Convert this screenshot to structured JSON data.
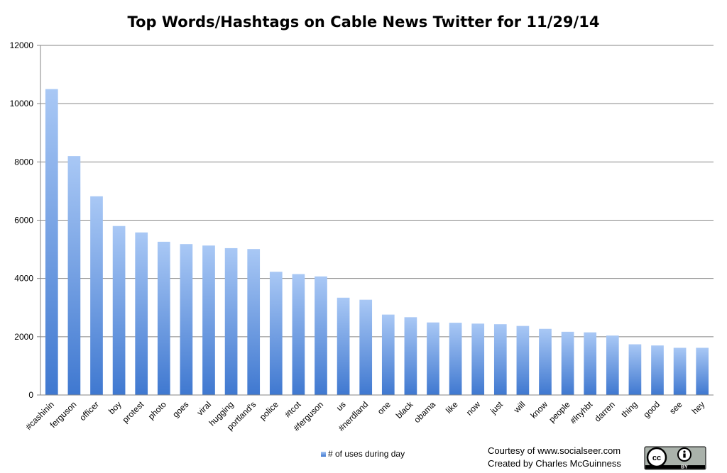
{
  "chart_data": {
    "type": "bar",
    "title": "Top Words/Hashtags on Cable News Twitter for 11/29/14",
    "categories": [
      "#cashinin",
      "ferguson",
      "officer",
      "boy",
      "protest",
      "photo",
      "goes",
      "viral",
      "hugging",
      "portland's",
      "police",
      "#tcot",
      "#ferguson",
      "us",
      "#nerdland",
      "one",
      "black",
      "obama",
      "like",
      "now",
      "just",
      "will",
      "know",
      "people",
      "#lnyhbt",
      "darren",
      "thing",
      "good",
      "see",
      "hey"
    ],
    "series": [
      {
        "name": "# of uses during day",
        "values": [
          10500,
          8200,
          6820,
          5800,
          5580,
          5260,
          5180,
          5130,
          5040,
          5010,
          4230,
          4150,
          4070,
          3340,
          3270,
          2760,
          2670,
          2490,
          2480,
          2450,
          2430,
          2370,
          2270,
          2170,
          2150,
          2040,
          1740,
          1700,
          1620,
          1620
        ]
      }
    ],
    "ylim": [
      0,
      12000
    ],
    "yticks": [
      0,
      2000,
      4000,
      6000,
      8000,
      10000,
      12000
    ],
    "grid": true,
    "legend": "bottom",
    "colors": {
      "bar_top": "#a9c8f5",
      "bar_bottom": "#3f78d0",
      "grid": "#868686",
      "axis": "#868686"
    }
  },
  "footer": {
    "credit_line1": "Courtesy of www.socialseer.com",
    "credit_line2": "Created by Charles McGuinness",
    "license_badge": {
      "icon": "creative-commons-by-icon",
      "cc_text": "cc",
      "by_text": "BY"
    }
  }
}
